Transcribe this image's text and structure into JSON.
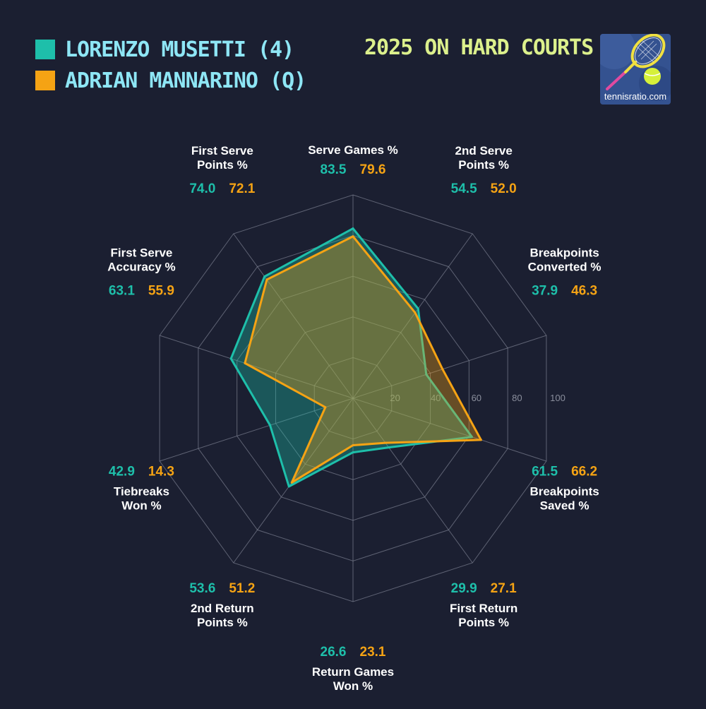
{
  "title": "2025 ON HARD COURTS",
  "logo_text": "tennisratio.com",
  "colors": {
    "background": "#1b1f31",
    "player1": "#1ebfaa",
    "player2": "#f5a314",
    "label": "#ffffff",
    "grid": "#7b7f90",
    "tick": "#8a8e9c"
  },
  "players": [
    {
      "name": "LORENZO MUSETTI (4)",
      "color": "#1ebfaa"
    },
    {
      "name": "ADRIAN MANNARINO (Q)",
      "color": "#f5a314"
    }
  ],
  "chart_data": {
    "type": "radar",
    "title": "2025 ON HARD COURTS",
    "range": [
      0,
      100
    ],
    "ticks": [
      20,
      40,
      60,
      80,
      100
    ],
    "categories": [
      "Serve Games %",
      "2nd Serve Points %",
      "Breakpoints Converted %",
      "Breakpoints Saved %",
      "First Return Points %",
      "Return Games Won %",
      "2nd Return Points %",
      "Tiebreaks Won %",
      "First Serve Accuracy %",
      "First Serve Points %"
    ],
    "category_lines": [
      [
        "Serve Games %"
      ],
      [
        "2nd Serve",
        "Points %"
      ],
      [
        "Breakpoints",
        "Converted %"
      ],
      [
        "Breakpoints",
        "Saved %"
      ],
      [
        "First Return",
        "Points %"
      ],
      [
        "Return Games",
        "Won %"
      ],
      [
        "2nd Return",
        "Points %"
      ],
      [
        "Tiebreaks",
        "Won %"
      ],
      [
        "First Serve",
        "Accuracy %"
      ],
      [
        "First Serve",
        "Points %"
      ]
    ],
    "series": [
      {
        "name": "LORENZO MUSETTI (4)",
        "values": [
          83.5,
          54.5,
          37.9,
          61.5,
          29.9,
          26.6,
          53.6,
          42.9,
          63.1,
          74.0
        ],
        "labels": [
          "83.5",
          "54.5",
          "37.9",
          "61.5",
          "29.9",
          "26.6",
          "53.6",
          "42.9",
          "63.1",
          "74.0"
        ]
      },
      {
        "name": "ADRIAN MANNARINO (Q)",
        "values": [
          79.6,
          52.0,
          46.3,
          66.2,
          27.1,
          23.1,
          51.2,
          14.3,
          55.9,
          72.1
        ],
        "labels": [
          "79.6",
          "52.0",
          "46.3",
          "66.2",
          "27.1",
          "23.1",
          "51.2",
          "14.3",
          "55.9",
          "72.1"
        ]
      }
    ],
    "grid": true,
    "legend": "top-left"
  }
}
